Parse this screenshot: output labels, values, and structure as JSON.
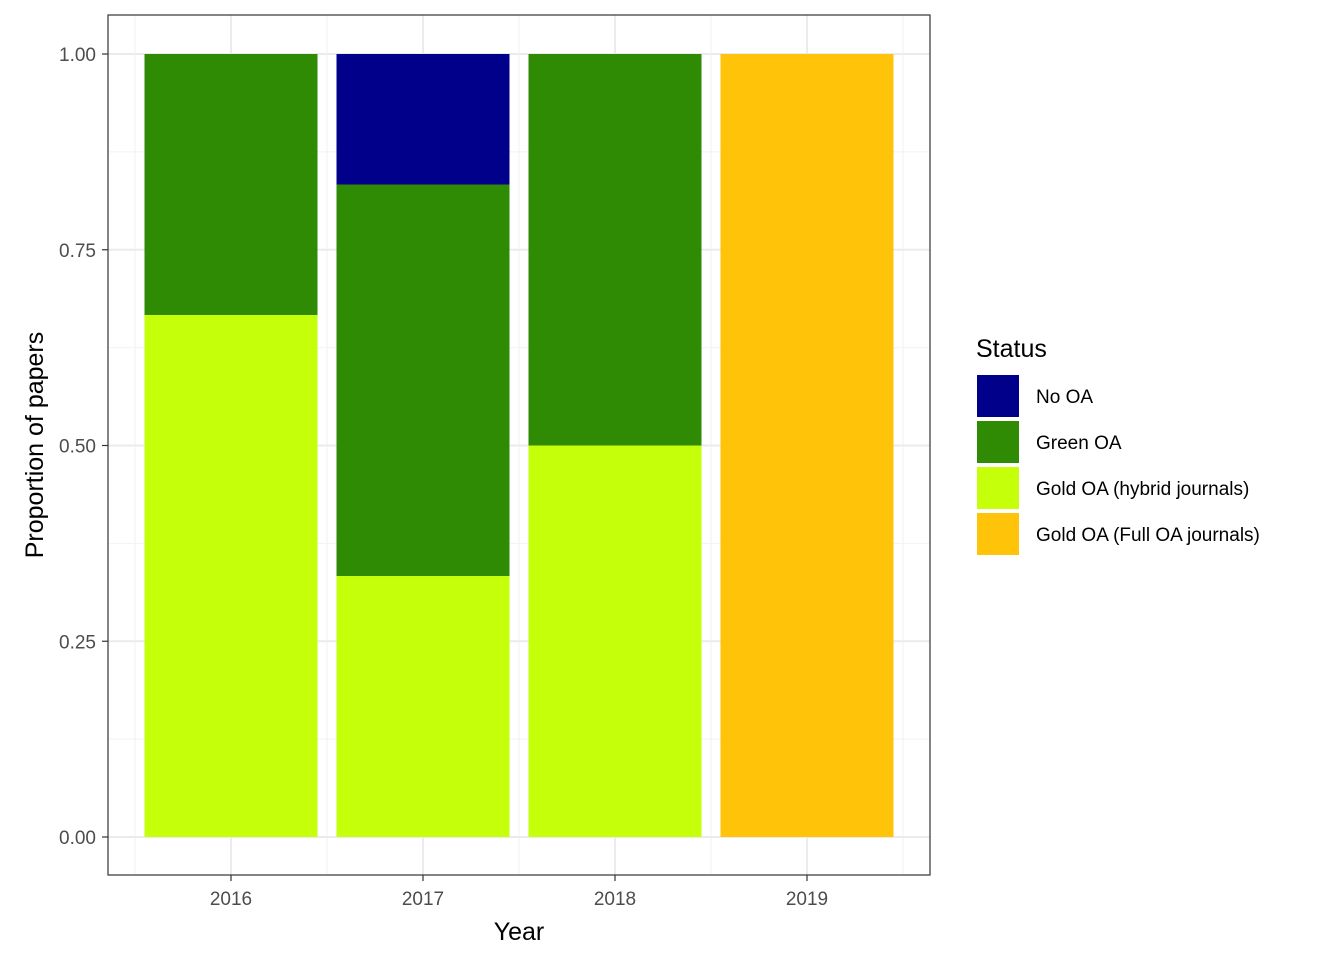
{
  "chart_data": {
    "type": "bar",
    "stacked": true,
    "title": "",
    "xlabel": "Year",
    "ylabel": "Proportion of papers",
    "categories": [
      "2016",
      "2017",
      "2018",
      "2019"
    ],
    "ylim": [
      0,
      1
    ],
    "yticks": [
      0,
      0.25,
      0.5,
      0.75,
      1
    ],
    "ytick_labels": [
      "0.00",
      "0.25",
      "0.50",
      "0.75",
      "1.00"
    ],
    "grid": true,
    "legend": {
      "title": "Status",
      "position": "right"
    },
    "series": [
      {
        "name": "No OA",
        "color": "#00008B",
        "values": [
          0,
          0.1667,
          0,
          0
        ]
      },
      {
        "name": "Green OA",
        "color": "#2E8B03",
        "values": [
          0.3333,
          0.5,
          0.5,
          0
        ]
      },
      {
        "name": "Gold OA (hybrid journals)",
        "color": "#C6FF0A",
        "values": [
          0.6667,
          0.3333,
          0.5,
          0
        ]
      },
      {
        "name": "Gold OA (Full OA journals)",
        "color": "#FFC30A",
        "values": [
          0,
          0,
          0,
          1
        ]
      }
    ]
  }
}
